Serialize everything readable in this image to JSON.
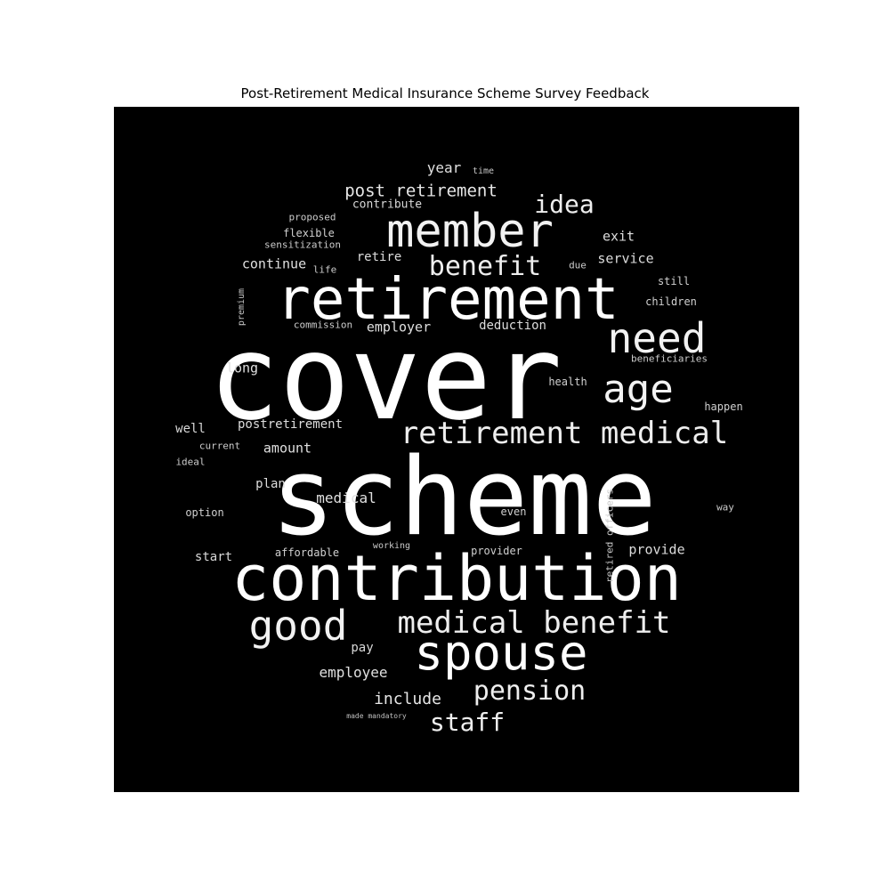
{
  "title": "Post-Retirement Medical Insurance Scheme Survey Feedback",
  "cloud": {
    "background": "#000000",
    "text_color": "#ffffff",
    "words": {
      "cover": "cover",
      "scheme": "scheme",
      "contribution": "contribution",
      "retirement": "retirement",
      "member": "member",
      "spouse": "spouse",
      "good": "good",
      "need": "need",
      "age": "age",
      "retirement_medical": "retirement medical",
      "medical_benefit": "medical benefit",
      "benefit": "benefit",
      "pension": "pension",
      "staff": "staff",
      "idea": "idea",
      "post_retirement": "post retirement",
      "include": "include",
      "employee": "employee",
      "medical": "medical",
      "amount": "amount",
      "employer": "employer",
      "deduction": "deduction",
      "continue": "continue",
      "postretirement": "postretirement",
      "plan": "plan",
      "long": "long",
      "year": "year",
      "exit": "exit",
      "service": "service",
      "provide": "provide",
      "retire": "retire",
      "contribute": "contribute",
      "well": "well",
      "start": "start",
      "pay": "pay",
      "affordable": "affordable",
      "provider": "provider",
      "even": "even",
      "option": "option",
      "happen": "happen",
      "way": "way",
      "children": "children",
      "still": "still",
      "due": "due",
      "health": "health",
      "beneficiaries": "beneficiaries",
      "proposed": "proposed",
      "flexible": "flexible",
      "sensitization": "sensitization",
      "life": "life",
      "commission": "commission",
      "current": "current",
      "ideal": "ideal",
      "working": "working",
      "time": "time",
      "made_mandatory": "made mandatory",
      "premium": "premium",
      "retired_officers": "retired officers"
    }
  }
}
